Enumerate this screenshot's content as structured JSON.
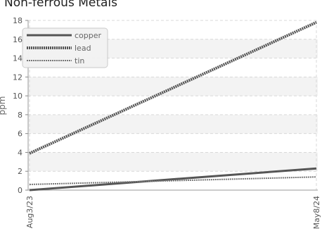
{
  "chart_data": {
    "type": "line",
    "title": "Non-ferrous Metals",
    "ylabel": "ppm",
    "xlabel": "",
    "x": [
      "Aug3/23",
      "May8/24"
    ],
    "ylim": [
      0,
      18
    ],
    "yticks": [
      0,
      2,
      4,
      6,
      8,
      10,
      12,
      14,
      16,
      18
    ],
    "grid": true,
    "legend_position": "top-left",
    "series": [
      {
        "name": "copper",
        "values": [
          0.0,
          2.3
        ],
        "color": "#555555",
        "style": "solid"
      },
      {
        "name": "lead",
        "values": [
          3.9,
          17.8
        ],
        "color": "#555555",
        "style": "dotted"
      },
      {
        "name": "tin",
        "values": [
          0.6,
          1.4
        ],
        "color": "#777777",
        "style": "dotted"
      }
    ]
  }
}
